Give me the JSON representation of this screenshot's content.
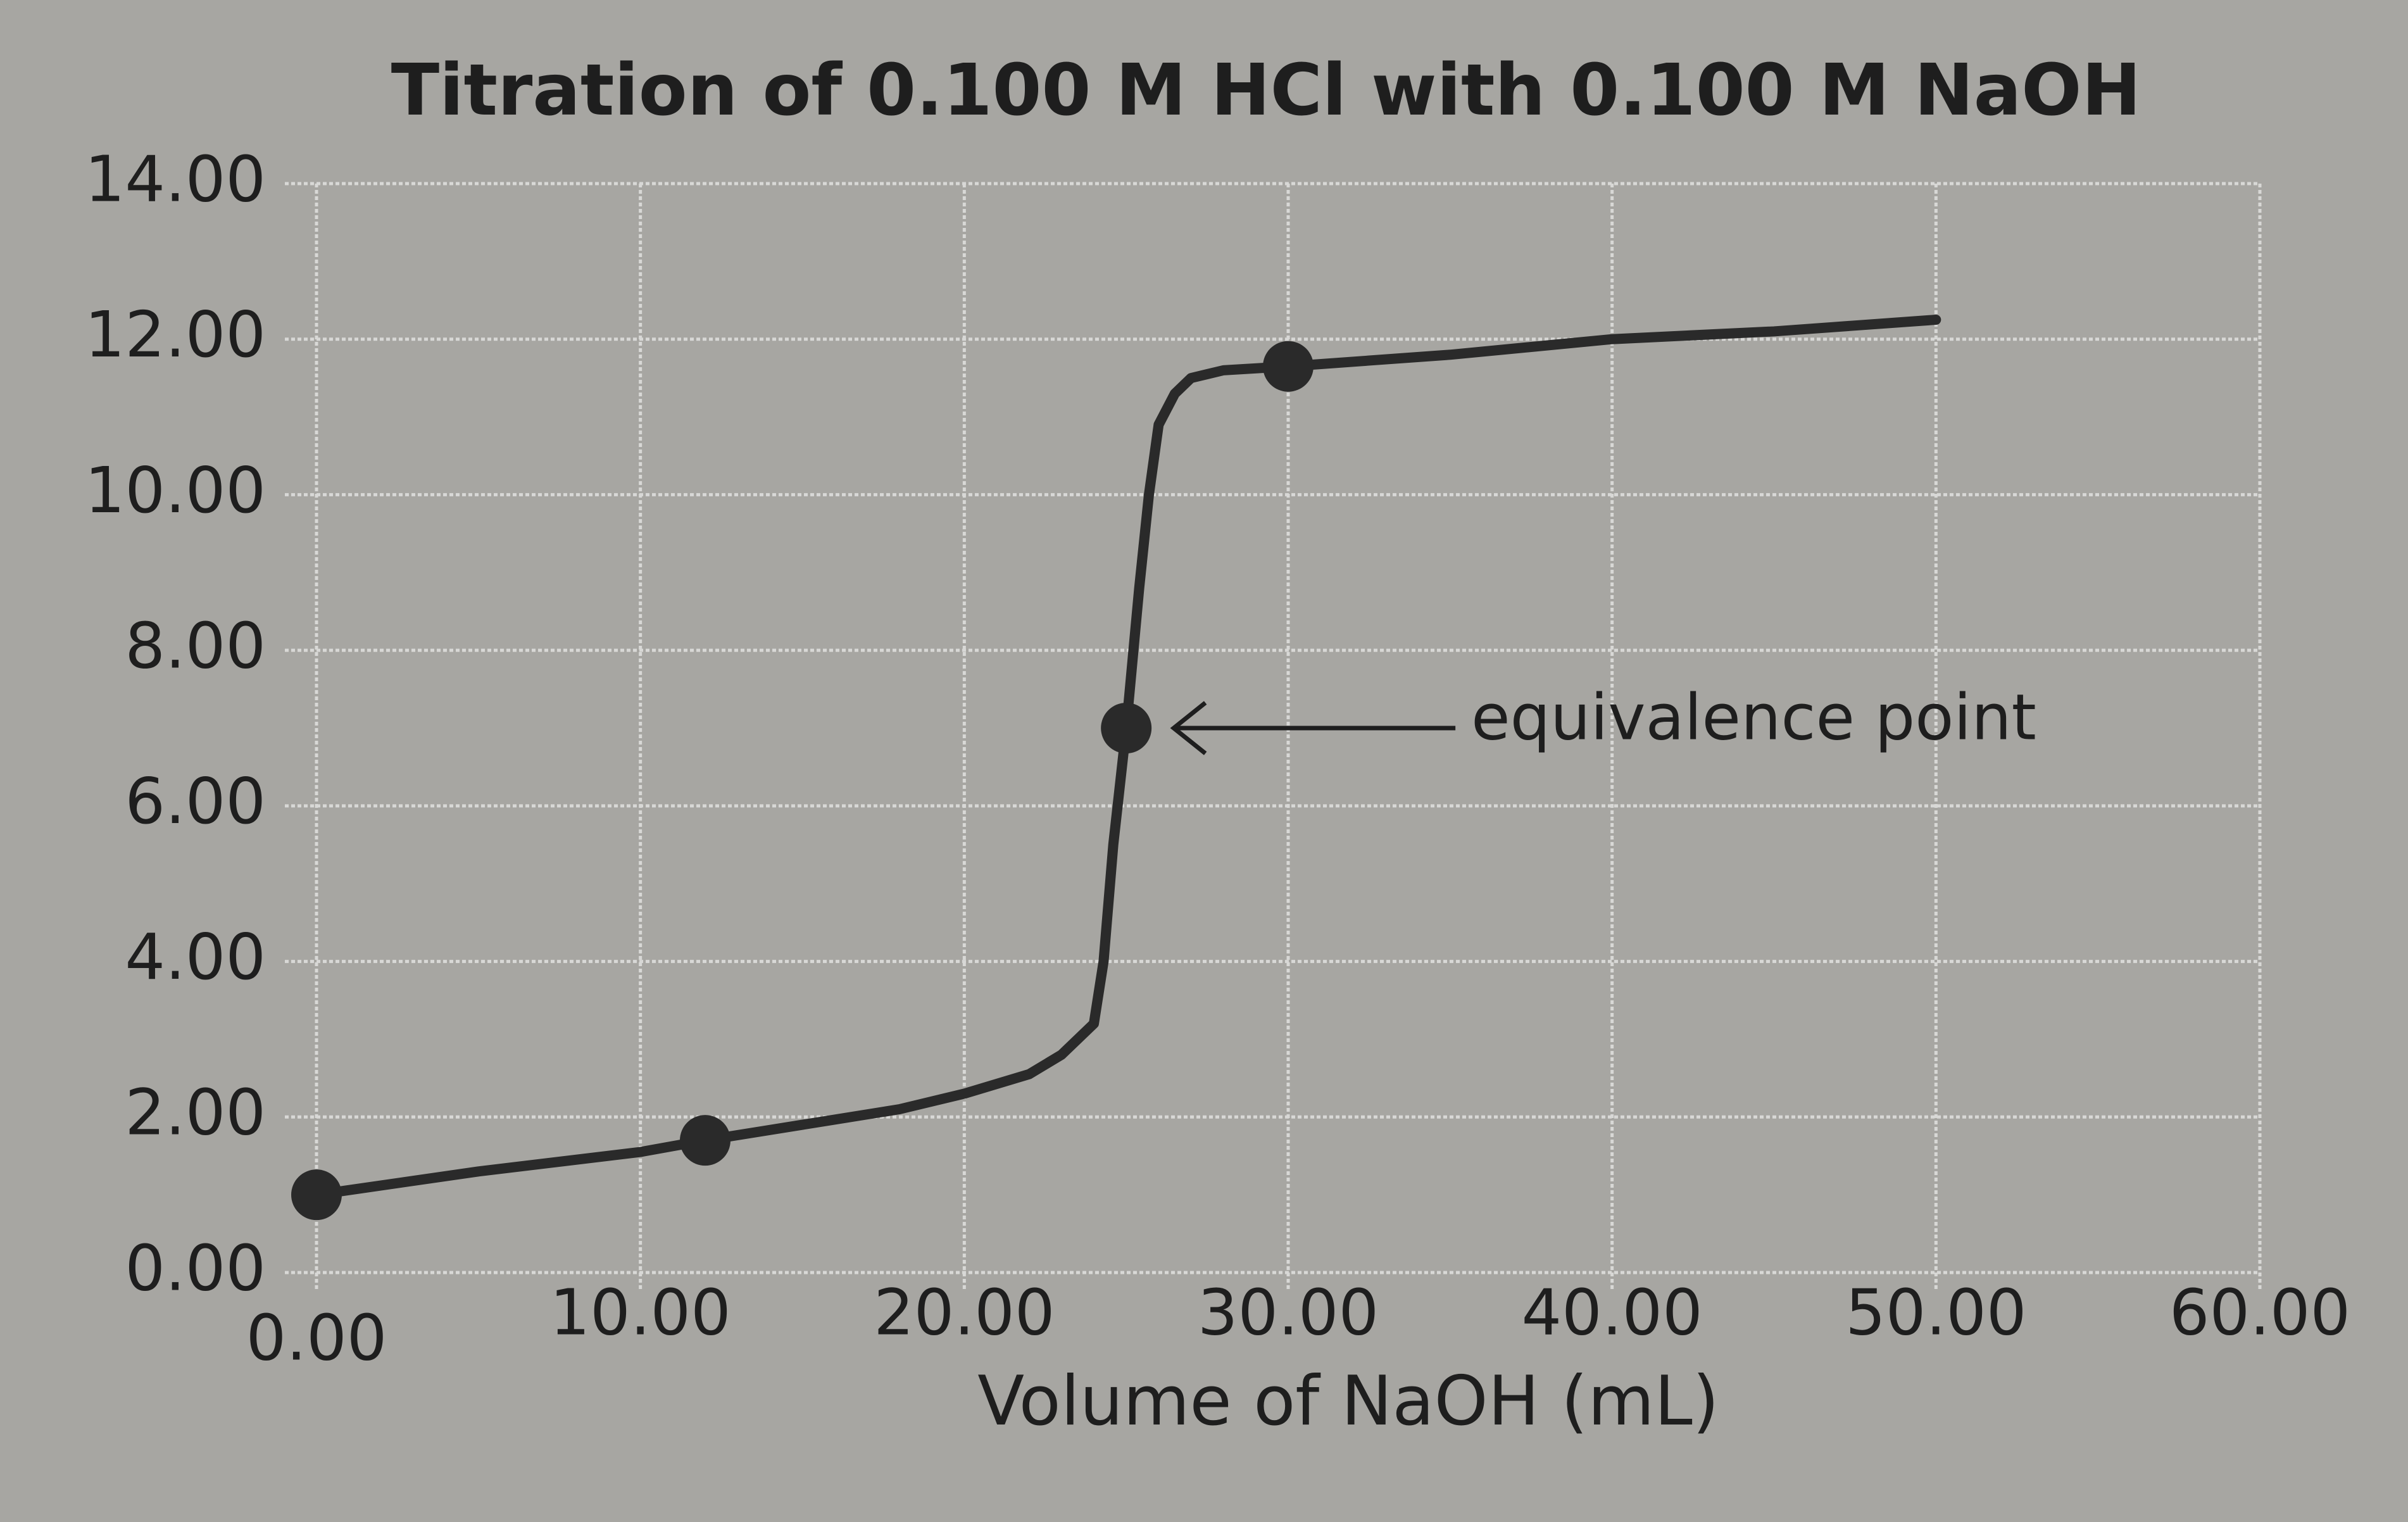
{
  "chart_data": {
    "type": "line",
    "title": "Titration of 0.100 M HCl with 0.100 M NaOH",
    "x_label": "Volume of NaOH (mL)",
    "x": [
      0,
      5,
      10,
      12,
      15,
      18,
      20,
      22,
      23,
      24,
      24.3,
      24.6,
      25,
      25.4,
      25.7,
      26,
      26.5,
      27,
      28,
      30,
      35,
      40,
      45,
      50
    ],
    "values": [
      1.0,
      1.3,
      1.55,
      1.7,
      1.9,
      2.1,
      2.3,
      2.55,
      2.8,
      3.2,
      4.0,
      5.5,
      7.0,
      8.8,
      10.0,
      10.9,
      11.3,
      11.5,
      11.6,
      11.65,
      11.8,
      12.0,
      12.1,
      12.25
    ],
    "color": "#2a2a2a",
    "points": {
      "x": [
        0,
        12,
        25,
        30
      ],
      "values": [
        1.0,
        1.7,
        7.0,
        11.65
      ]
    },
    "annotation": {
      "text": "equivalence point",
      "x": 25,
      "y": 7.0
    },
    "xlim": [
      0,
      60
    ],
    "xticks": [
      {
        "value": 0,
        "label": "0.00"
      },
      {
        "value": 10,
        "label": "10.00"
      },
      {
        "value": 20,
        "label": "20.00"
      },
      {
        "value": 30,
        "label": "30.00"
      },
      {
        "value": 40,
        "label": "40.00"
      },
      {
        "value": 50,
        "label": "50.00"
      },
      {
        "value": 60,
        "label": "60.00"
      }
    ],
    "ylim": [
      0,
      14
    ],
    "yticks": [
      {
        "value": 0,
        "label": "0.00"
      },
      {
        "value": 2,
        "label": "2.00"
      },
      {
        "value": 4,
        "label": "4.00"
      },
      {
        "value": 6,
        "label": "6.00"
      },
      {
        "value": 8,
        "label": "8.00"
      },
      {
        "value": 10,
        "label": "10.00"
      },
      {
        "value": 12,
        "label": "12.00"
      },
      {
        "value": 14,
        "label": "14.00"
      }
    ],
    "grid": true
  }
}
